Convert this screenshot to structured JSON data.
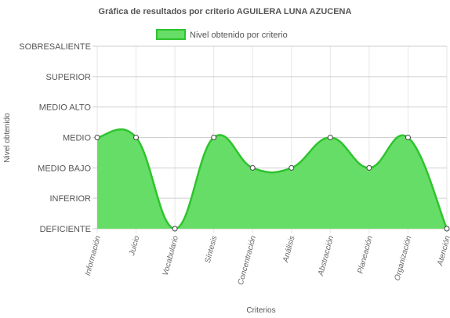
{
  "chart_data": {
    "type": "area",
    "title": "Gráfica de resultados por criterio AGUILERA LUNA AZUCENA",
    "xlabel": "Criterios",
    "ylabel": "Nivel obtenido",
    "levels": [
      "DEFICIENTE",
      "INFERIOR",
      "MEDIO BAJO",
      "MEDIO",
      "MEDIO ALTO",
      "SUPERIOR",
      "SOBRESALIENTE"
    ],
    "categories": [
      "Información",
      "Juicio",
      "Vocabulario",
      "Síntesis",
      "Concentración",
      "Análisis",
      "Abstracción",
      "Planeación",
      "Organización",
      "Atención"
    ],
    "series": [
      {
        "name": "Nivel obtenido por criterio",
        "values": [
          "MEDIO",
          "MEDIO",
          "DEFICIENTE",
          "MEDIO",
          "MEDIO BAJO",
          "MEDIO BAJO",
          "MEDIO",
          "MEDIO BAJO",
          "MEDIO",
          "DEFICIENTE"
        ],
        "fill_color": "#66dd66",
        "line_color": "#2ec42e"
      }
    ],
    "legend_position": "top",
    "grid": true
  }
}
